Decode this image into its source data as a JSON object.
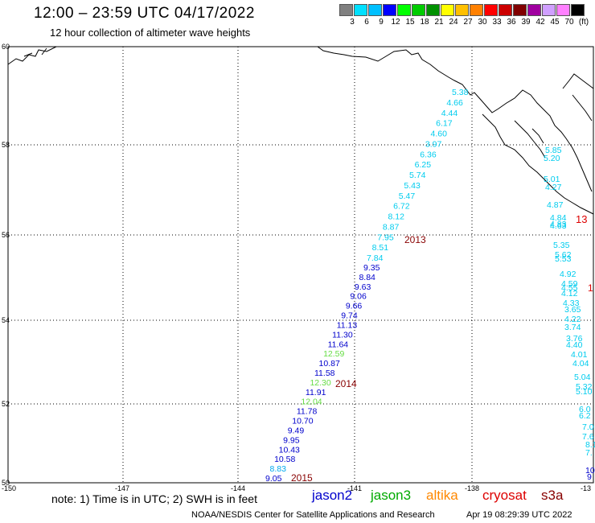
{
  "title": "12:00 – 23:59 UTC 04/17/2022",
  "subtitle": "12 hour collection of altimeter wave heights",
  "legend": {
    "colors": [
      "#808080",
      "#00e0ff",
      "#00c0ff",
      "#0000ff",
      "#00ff00",
      "#00cc00",
      "#009000",
      "#ffff00",
      "#ffc000",
      "#ff8000",
      "#ff0000",
      "#cc0000",
      "#800000",
      "#a000a0",
      "#d0a0ff",
      "#ff80ff",
      "#000000"
    ],
    "labels": [
      "3",
      "6",
      "9",
      "12",
      "15",
      "18",
      "21",
      "24",
      "27",
      "30",
      "33",
      "36",
      "39",
      "42",
      "45",
      "70",
      "(ft)"
    ]
  },
  "lat_labels": [
    "60",
    "58",
    "56",
    "54",
    "52",
    "50"
  ],
  "lon_labels": [
    "-150",
    "-147",
    "-144",
    "-141",
    "-138",
    "-13"
  ],
  "tracks": [
    {
      "id": "2013",
      "color": "#00ccee",
      "values": [
        "5.38",
        "4.66",
        "4.44",
        "6.17",
        "4.60",
        "3.97",
        "6.36",
        "6.25",
        "5.74",
        "5.43",
        "5.47",
        "6.72",
        "8.12",
        "8.87",
        "7.95",
        "8.51",
        "7.84"
      ]
    },
    {
      "id": "2014",
      "color": "#0000cc",
      "values": [
        "9.35",
        "8.84",
        "9.63",
        "9.06",
        "9.66",
        "9.74",
        "11.13",
        "11.30",
        "11.64",
        "12.59",
        "10.87",
        "11.58",
        "12.30",
        "11.91",
        "12.04",
        "11.78",
        "10.70",
        "9.49",
        "9.95",
        "10.43",
        "10.58",
        "8.83",
        "9.05"
      ]
    },
    {
      "id": "east",
      "color": "#00ccee",
      "values": [
        "5.85",
        "5.20",
        "5.01",
        "4.27",
        "4.87",
        "4.84",
        "4.83",
        "4.63",
        "5.35",
        "5.62",
        "5.53",
        "4.92",
        "4.59",
        "4.55",
        "4.12",
        "4.33",
        "3.65",
        "4.22",
        "3.74",
        "3.76",
        "4.40",
        "4.01",
        "4.04",
        "5.04",
        "5.32",
        "5.10",
        "6.0",
        "6.2",
        "7.0",
        "7.6",
        "8.1",
        "7.",
        "10",
        "9"
      ]
    }
  ],
  "track_labels": [
    "2013",
    "2014",
    "2015",
    "13",
    "1"
  ],
  "note": "note:  1) Time is in UTC;  2) SWH is in feet",
  "satellites": [
    {
      "name": "jason2",
      "color": "#0000cc"
    },
    {
      "name": "jason3",
      "color": "#00aa00"
    },
    {
      "name": "altika",
      "color": "#ff8800"
    },
    {
      "name": "cryosat",
      "color": "#dd0000"
    },
    {
      "name": "s3a",
      "color": "#880000"
    }
  ],
  "credit": "NOAA/NESDIS Center for Satellite Applications and Research",
  "timestamp": "Apr 19 08:29:39 UTC 2022"
}
